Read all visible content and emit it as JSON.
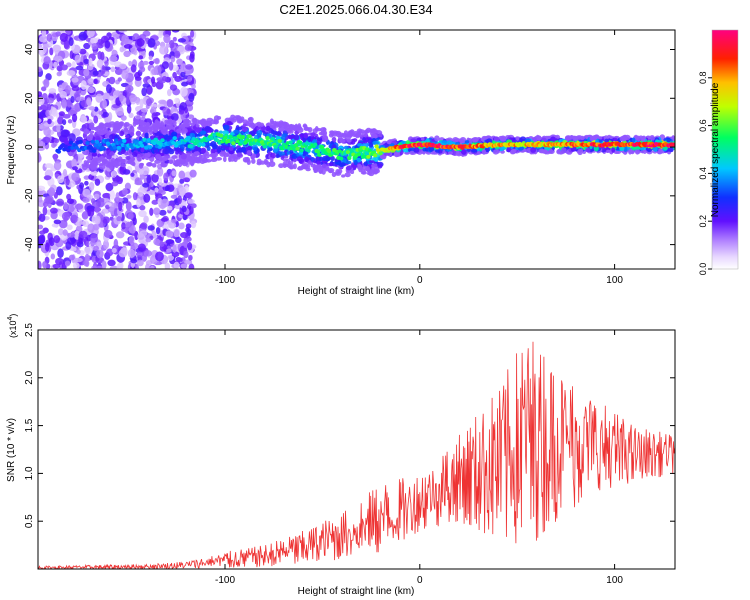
{
  "title": "C2E1.2025.066.04.30.E34",
  "chart_data": [
    {
      "type": "heatmap",
      "xlabel": "Height of straight line (km)",
      "ylabel": "Frequency (Hz)",
      "xlim": [
        -196,
        131
      ],
      "ylim": [
        -50,
        48
      ],
      "xticks": [
        -100,
        0,
        100
      ],
      "yticks": [
        -40,
        -20,
        0,
        20,
        40
      ],
      "colorbar": {
        "label": "Normalized spectral amplitude",
        "range": [
          0,
          1
        ],
        "ticks": [
          "0.0",
          "0.2",
          "0.4",
          "0.6",
          "0.8"
        ]
      },
      "ridge": {
        "description_points": [
          {
            "x": -180,
            "f": 0.0,
            "amp": 0.3
          },
          {
            "x": -150,
            "f": 1.0,
            "amp": 0.4
          },
          {
            "x": -120,
            "f": 2.0,
            "amp": 0.45
          },
          {
            "x": -100,
            "f": 4.0,
            "amp": 0.55
          },
          {
            "x": -80,
            "f": 2.0,
            "amp": 0.55
          },
          {
            "x": -60,
            "f": 0.0,
            "amp": 0.55
          },
          {
            "x": -40,
            "f": -3.0,
            "amp": 0.55
          },
          {
            "x": -25,
            "f": -2.0,
            "amp": 0.6
          },
          {
            "x": -10,
            "f": 0.0,
            "amp": 0.9
          },
          {
            "x": 0,
            "f": 1.0,
            "amp": 0.95
          },
          {
            "x": 20,
            "f": 0.0,
            "amp": 0.9
          },
          {
            "x": 40,
            "f": 1.0,
            "amp": 0.8
          },
          {
            "x": 60,
            "f": 1.0,
            "amp": 0.75
          },
          {
            "x": 90,
            "f": 1.0,
            "amp": 0.9
          },
          {
            "x": 131,
            "f": 1.0,
            "amp": 0.95
          }
        ]
      }
    },
    {
      "type": "line",
      "xlabel": "Height of straight line (km)",
      "ylabel": "SNR (10 * v/v)",
      "yscale_label": "(x10",
      "yscale_exponent": "4",
      "xlim": [
        -196,
        131
      ],
      "ylim": [
        0,
        2.5
      ],
      "xticks": [
        -100,
        0,
        100
      ],
      "yticks": [
        0.5,
        1.0,
        1.5,
        2.0,
        2.5
      ],
      "color": "#ee3333",
      "series": [
        {
          "envelope": [
            {
              "x": -196,
              "min": 0.0,
              "max": 0.03
            },
            {
              "x": -140,
              "min": 0.0,
              "max": 0.05
            },
            {
              "x": -120,
              "min": 0.0,
              "max": 0.08
            },
            {
              "x": -100,
              "min": 0.01,
              "max": 0.18
            },
            {
              "x": -80,
              "min": 0.02,
              "max": 0.25
            },
            {
              "x": -60,
              "min": 0.05,
              "max": 0.4
            },
            {
              "x": -40,
              "min": 0.1,
              "max": 0.6
            },
            {
              "x": -20,
              "min": 0.15,
              "max": 0.9
            },
            {
              "x": 0,
              "min": 0.4,
              "max": 1.0
            },
            {
              "x": 20,
              "min": 0.5,
              "max": 1.4
            },
            {
              "x": 40,
              "min": 0.3,
              "max": 1.9
            },
            {
              "x": 55,
              "min": 0.2,
              "max": 2.5
            },
            {
              "x": 70,
              "min": 0.5,
              "max": 2.2
            },
            {
              "x": 90,
              "min": 0.8,
              "max": 1.8
            },
            {
              "x": 110,
              "min": 0.9,
              "max": 1.5
            },
            {
              "x": 131,
              "min": 1.0,
              "max": 1.4
            }
          ]
        }
      ]
    }
  ]
}
